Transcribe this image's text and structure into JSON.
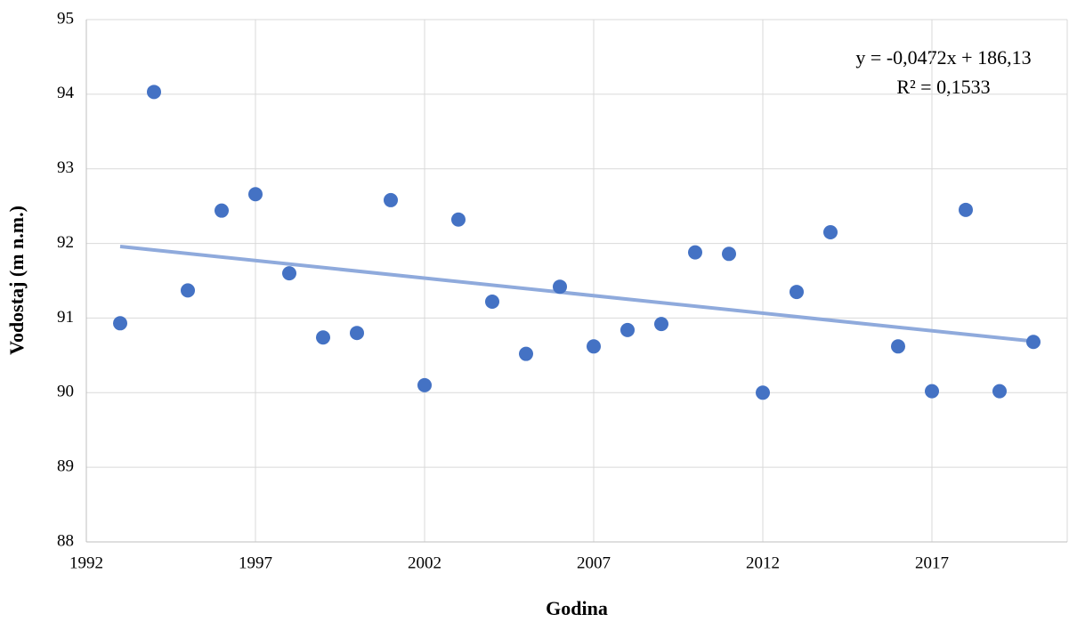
{
  "chart_data": {
    "type": "scatter",
    "x_label": "Godina",
    "y_label": "Vodostaj (m n.m.)",
    "x": [
      1993,
      1994,
      1995,
      1996,
      1997,
      1998,
      1999,
      2000,
      2001,
      2002,
      2003,
      2004,
      2005,
      2006,
      2007,
      2008,
      2009,
      2010,
      2011,
      2012,
      2013,
      2014,
      2016,
      2017,
      2018,
      2019,
      2020
    ],
    "y": [
      90.93,
      94.03,
      91.37,
      92.44,
      92.66,
      91.6,
      90.74,
      90.8,
      92.58,
      90.1,
      92.32,
      91.22,
      90.52,
      91.42,
      90.62,
      90.84,
      90.92,
      91.88,
      91.86,
      90.0,
      91.35,
      92.15,
      90.62,
      90.02,
      92.45,
      90.02,
      90.68
    ],
    "color": "#4472c4",
    "trendline_color": "#8faadc",
    "annotations": [
      "y = -0,0472x + 186,13",
      "R² = 0,1533"
    ],
    "xlim": [
      1992,
      2021
    ],
    "xticks": [
      1992,
      1997,
      2002,
      2007,
      2012,
      2017
    ],
    "ylim": [
      88,
      95
    ],
    "yticks": [
      88,
      89,
      90,
      91,
      92,
      93,
      94,
      95
    ],
    "grid": true
  }
}
